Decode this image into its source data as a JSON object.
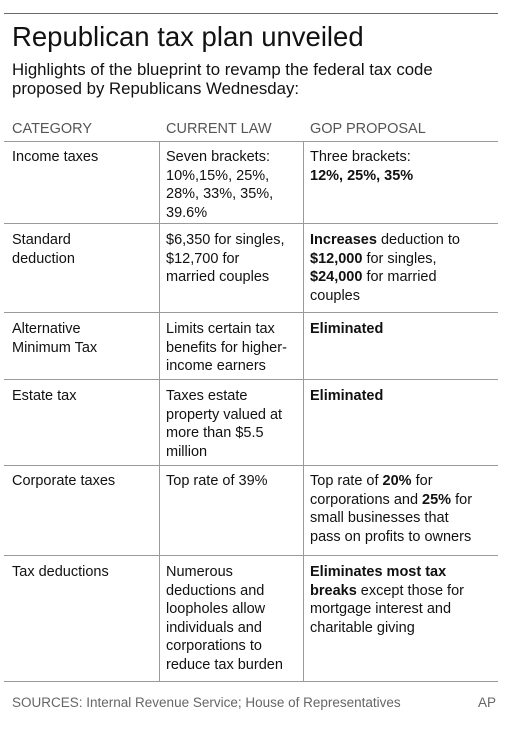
{
  "title": "Republican tax plan unveiled",
  "subtitle_lines": [
    "Highlights of the blueprint to revamp the federal tax code",
    "proposed by Republicans Wednesday:"
  ],
  "columns": [
    "CATEGORY",
    "CURRENT LAW",
    "GOP PROPOSAL"
  ],
  "rows": [
    {
      "category": [
        "Income taxes"
      ],
      "current": [
        "Seven brackets:",
        "10%,15%, 25%,",
        "28%, 33%, 35%,",
        "39.6%"
      ],
      "proposal": [
        [
          {
            "t": "Three brackets:",
            "b": false
          }
        ],
        [
          {
            "t": "12%, 25%, 35%",
            "b": true
          }
        ]
      ]
    },
    {
      "category": [
        "Standard",
        "deduction"
      ],
      "current": [
        "$6,350 for singles,",
        "$12,700 for",
        "married couples"
      ],
      "proposal": [
        [
          {
            "t": "Increases",
            "b": true
          },
          {
            "t": " deduction to",
            "b": false
          }
        ],
        [
          {
            "t": "$12,000",
            "b": true
          },
          {
            "t": " for singles,",
            "b": false
          }
        ],
        [
          {
            "t": "$24,000",
            "b": true
          },
          {
            "t": " for married",
            "b": false
          }
        ],
        [
          {
            "t": "couples",
            "b": false
          }
        ]
      ]
    },
    {
      "category": [
        "Alternative",
        "Minimum Tax"
      ],
      "current": [
        "Limits certain tax",
        "benefits for higher-",
        "income earners"
      ],
      "proposal": [
        [
          {
            "t": "Eliminated",
            "b": true
          }
        ]
      ]
    },
    {
      "category": [
        "Estate tax"
      ],
      "current": [
        "Taxes estate",
        "property valued at",
        "more than $5.5",
        "million"
      ],
      "proposal": [
        [
          {
            "t": "Eliminated",
            "b": true
          }
        ]
      ]
    },
    {
      "category": [
        "Corporate taxes"
      ],
      "current": [
        "Top rate of 39%"
      ],
      "proposal": [
        [
          {
            "t": "Top rate of ",
            "b": false
          },
          {
            "t": "20%",
            "b": true
          },
          {
            "t": " for",
            "b": false
          }
        ],
        [
          {
            "t": "corporations and ",
            "b": false
          },
          {
            "t": "25%",
            "b": true
          },
          {
            "t": " for",
            "b": false
          }
        ],
        [
          {
            "t": "small businesses that",
            "b": false
          }
        ],
        [
          {
            "t": "pass on profits to owners",
            "b": false
          }
        ]
      ]
    },
    {
      "category": [
        "Tax deductions"
      ],
      "current": [
        "Numerous",
        "deductions and",
        "loopholes allow",
        "individuals and",
        "corporations to",
        "reduce tax burden"
      ],
      "proposal": [
        [
          {
            "t": "Eliminates most tax",
            "b": true
          }
        ],
        [
          {
            "t": "breaks",
            "b": true
          },
          {
            "t": " except those for",
            "b": false
          }
        ],
        [
          {
            "t": "mortgage interest and",
            "b": false
          }
        ],
        [
          {
            "t": "charitable giving",
            "b": false
          }
        ]
      ]
    }
  ],
  "sources": "SOURCES: Internal Revenue Service; House of Representatives",
  "credit": "AP"
}
